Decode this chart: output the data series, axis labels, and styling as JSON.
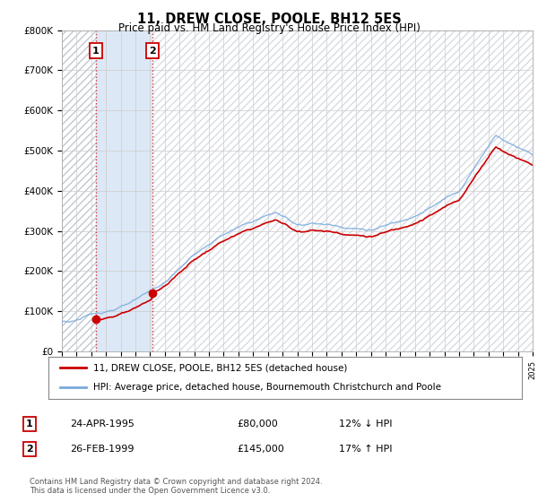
{
  "title": "11, DREW CLOSE, POOLE, BH12 5ES",
  "subtitle": "Price paid vs. HM Land Registry's House Price Index (HPI)",
  "legend_line1": "11, DREW CLOSE, POOLE, BH12 5ES (detached house)",
  "legend_line2": "HPI: Average price, detached house, Bournemouth Christchurch and Poole",
  "transaction1_date": "24-APR-1995",
  "transaction1_price": "£80,000",
  "transaction1_hpi": "12% ↓ HPI",
  "transaction2_date": "26-FEB-1999",
  "transaction2_price": "£145,000",
  "transaction2_hpi": "17% ↑ HPI",
  "footnote1": "Contains HM Land Registry data © Crown copyright and database right 2024.",
  "footnote2": "This data is licensed under the Open Government Licence v3.0.",
  "transaction1_x": 1995.31,
  "transaction1_y": 80000,
  "transaction2_x": 1999.15,
  "transaction2_y": 145000,
  "price_color": "#cc0000",
  "hpi_color": "#7aaadd",
  "hatch_bg": "#e8eef5",
  "ylim": [
    0,
    800000
  ],
  "xlim_start": 1993,
  "xlim_end": 2025,
  "background_color": "#ffffff"
}
